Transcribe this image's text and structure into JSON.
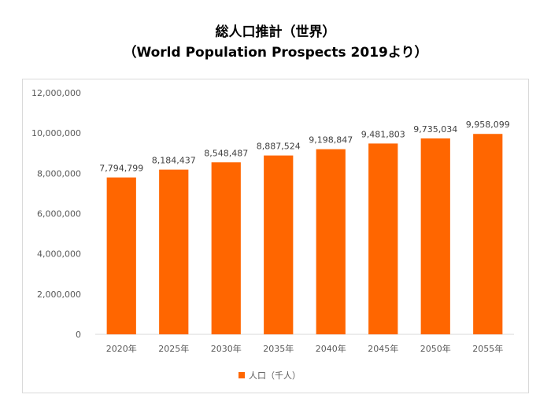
{
  "title": {
    "line1": "総人口推計（世界）",
    "line2": "（World Population Prospects 2019より）"
  },
  "colors": {
    "bar": "#ff6600",
    "axis": "#d9d9d9",
    "text": "#595959"
  },
  "chart_data": {
    "type": "bar",
    "categories": [
      "2020年",
      "2025年",
      "2030年",
      "2035年",
      "2040年",
      "2045年",
      "2050年",
      "2055年"
    ],
    "series": [
      {
        "name": "人口（千人）",
        "values": [
          7794799,
          8184437,
          8548487,
          8887524,
          9198847,
          9481803,
          9735034,
          9958099
        ],
        "labels": [
          "7,794,799",
          "8,184,437",
          "8,548,487",
          "8,887,524",
          "9,198,847",
          "9,481,803",
          "9,735,034",
          "9,958,099"
        ]
      }
    ],
    "ylim": [
      0,
      12000000
    ],
    "yticks": [
      0,
      2000000,
      4000000,
      6000000,
      8000000,
      10000000,
      12000000
    ],
    "ytick_labels": [
      "0",
      "2,000,000",
      "4,000,000",
      "6,000,000",
      "8,000,000",
      "10,000,000",
      "12,000,000"
    ],
    "grid": false,
    "legend": "bottom"
  }
}
